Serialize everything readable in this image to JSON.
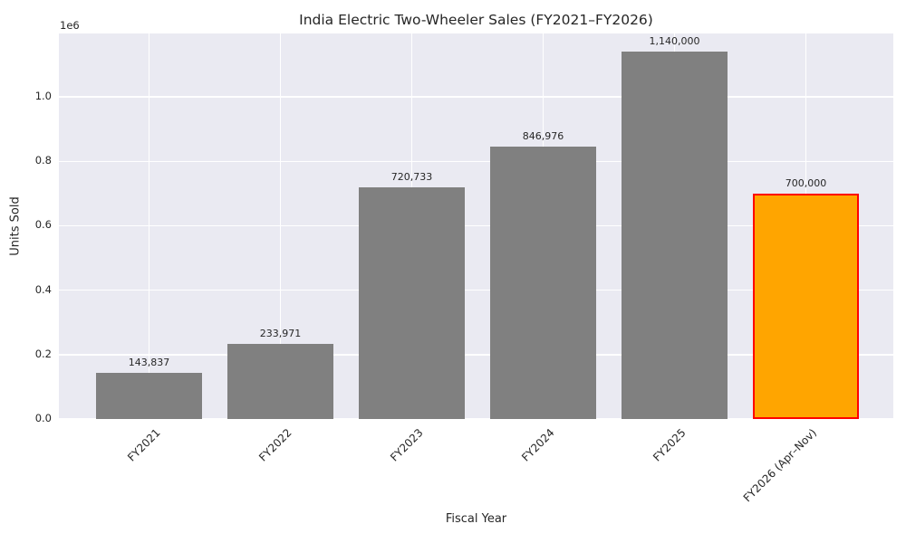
{
  "title": "India Electric Two-Wheeler Sales (FY2021–FY2026)",
  "chart_data": {
    "type": "bar",
    "title": "India Electric Two-Wheeler Sales (FY2021–FY2026)",
    "xlabel": "Fiscal Year",
    "ylabel": "Units Sold",
    "offset_label": "1e6",
    "categories": [
      "FY2021",
      "FY2022",
      "FY2023",
      "FY2024",
      "FY2025",
      "FY2026 (Apr–Nov)"
    ],
    "values": [
      143837,
      233971,
      720733,
      846976,
      1140000,
      700000
    ],
    "value_labels": [
      "143,837",
      "233,971",
      "720,733",
      "846,976",
      "1,140,000",
      "700,000"
    ],
    "bar_colors": [
      "#808080",
      "#808080",
      "#808080",
      "#808080",
      "#808080",
      "#FFA500"
    ],
    "highlight_index": 5,
    "highlight_edge_color": "#FF0000",
    "y_ticks": [
      "0.0",
      "0.2",
      "0.4",
      "0.6",
      "0.8",
      "1.0"
    ],
    "y_tick_values": [
      0,
      200000,
      400000,
      600000,
      800000,
      1000000
    ],
    "ylim": [
      0,
      1197000
    ],
    "grid": true,
    "legend": "none",
    "plot_bg_color": "#EAEAF2",
    "grid_color": "#FFFFFF",
    "text_color": "#262626"
  }
}
